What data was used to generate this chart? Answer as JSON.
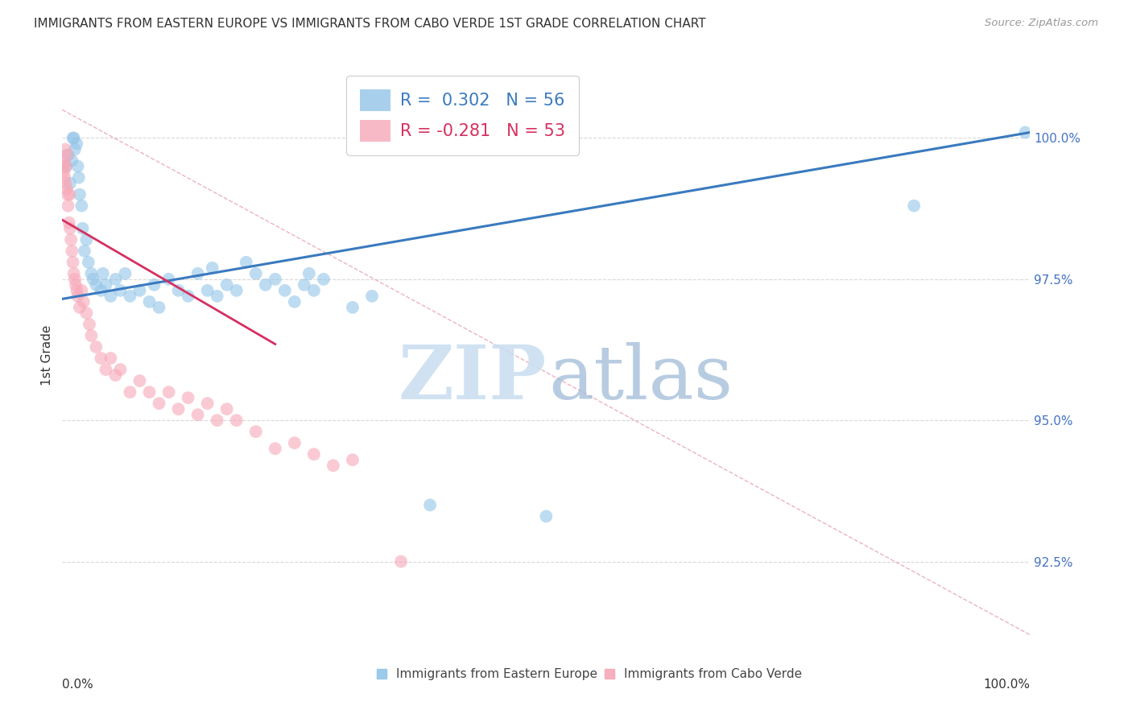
{
  "title": "IMMIGRANTS FROM EASTERN EUROPE VS IMMIGRANTS FROM CABO VERDE 1ST GRADE CORRELATION CHART",
  "source": "Source: ZipAtlas.com",
  "ylabel": "1st Grade",
  "x_range": [
    0.0,
    100.0
  ],
  "y_range": [
    91.0,
    101.3
  ],
  "y_ticks": [
    92.5,
    95.0,
    97.5,
    100.0
  ],
  "legend_blue_label": "R =  0.302   N = 56",
  "legend_pink_label": "R = -0.281   N = 53",
  "blue_color": "#93c5e8",
  "pink_color": "#f7a8b8",
  "trend_blue": "#3a7abf",
  "trend_pink": "#d63060",
  "diag_color": "#e8a0b0",
  "watermark_zip_color": "#c8ddf0",
  "watermark_atlas_color": "#a0bcd8",
  "blue_trend_x0": 0.0,
  "blue_trend_y0": 97.15,
  "blue_trend_x1": 100.0,
  "blue_trend_y1": 100.1,
  "pink_trend_x0": 0.0,
  "pink_trend_y0": 98.55,
  "pink_trend_x1": 22.0,
  "pink_trend_y1": 96.35,
  "diag_x0": 0.0,
  "diag_y0": 100.5,
  "diag_x1": 100.0,
  "diag_y1": 91.2,
  "blue_scatter_x": [
    0.4,
    0.6,
    0.8,
    1.0,
    1.1,
    1.2,
    1.3,
    1.5,
    1.6,
    1.7,
    1.8,
    2.0,
    2.1,
    2.3,
    2.5,
    2.7,
    3.0,
    3.2,
    3.5,
    4.0,
    4.2,
    4.5,
    5.0,
    5.5,
    6.0,
    6.5,
    7.0,
    8.0,
    9.0,
    9.5,
    10.0,
    11.0,
    12.0,
    13.0,
    14.0,
    15.0,
    15.5,
    16.0,
    17.0,
    18.0,
    19.0,
    20.0,
    21.0,
    22.0,
    23.0,
    24.0,
    25.0,
    25.5,
    26.0,
    27.0,
    30.0,
    32.0,
    38.0,
    50.0,
    88.0,
    99.5
  ],
  "blue_scatter_y": [
    99.5,
    99.7,
    99.2,
    99.6,
    100.0,
    100.0,
    99.8,
    99.9,
    99.5,
    99.3,
    99.0,
    98.8,
    98.4,
    98.0,
    98.2,
    97.8,
    97.6,
    97.5,
    97.4,
    97.3,
    97.6,
    97.4,
    97.2,
    97.5,
    97.3,
    97.6,
    97.2,
    97.3,
    97.1,
    97.4,
    97.0,
    97.5,
    97.3,
    97.2,
    97.6,
    97.3,
    97.7,
    97.2,
    97.4,
    97.3,
    97.8,
    97.6,
    97.4,
    97.5,
    97.3,
    97.1,
    97.4,
    97.6,
    97.3,
    97.5,
    97.0,
    97.2,
    93.5,
    93.3,
    98.8,
    100.1
  ],
  "pink_scatter_x": [
    0.1,
    0.15,
    0.2,
    0.25,
    0.3,
    0.35,
    0.4,
    0.45,
    0.5,
    0.55,
    0.6,
    0.7,
    0.75,
    0.8,
    0.9,
    1.0,
    1.1,
    1.2,
    1.3,
    1.4,
    1.5,
    1.6,
    1.8,
    2.0,
    2.2,
    2.5,
    2.8,
    3.0,
    3.5,
    4.0,
    4.5,
    5.0,
    5.5,
    6.0,
    7.0,
    8.0,
    9.0,
    10.0,
    11.0,
    12.0,
    13.0,
    14.0,
    15.0,
    16.0,
    17.0,
    18.0,
    20.0,
    22.0,
    24.0,
    26.0,
    28.0,
    30.0,
    35.0
  ],
  "pink_scatter_y": [
    99.5,
    99.4,
    99.6,
    99.3,
    99.8,
    99.2,
    99.5,
    99.1,
    99.7,
    99.0,
    98.8,
    98.5,
    99.0,
    98.4,
    98.2,
    98.0,
    97.8,
    97.6,
    97.5,
    97.4,
    97.3,
    97.2,
    97.0,
    97.3,
    97.1,
    96.9,
    96.7,
    96.5,
    96.3,
    96.1,
    95.9,
    96.1,
    95.8,
    95.9,
    95.5,
    95.7,
    95.5,
    95.3,
    95.5,
    95.2,
    95.4,
    95.1,
    95.3,
    95.0,
    95.2,
    95.0,
    94.8,
    94.5,
    94.6,
    94.4,
    94.2,
    94.3,
    92.5
  ]
}
